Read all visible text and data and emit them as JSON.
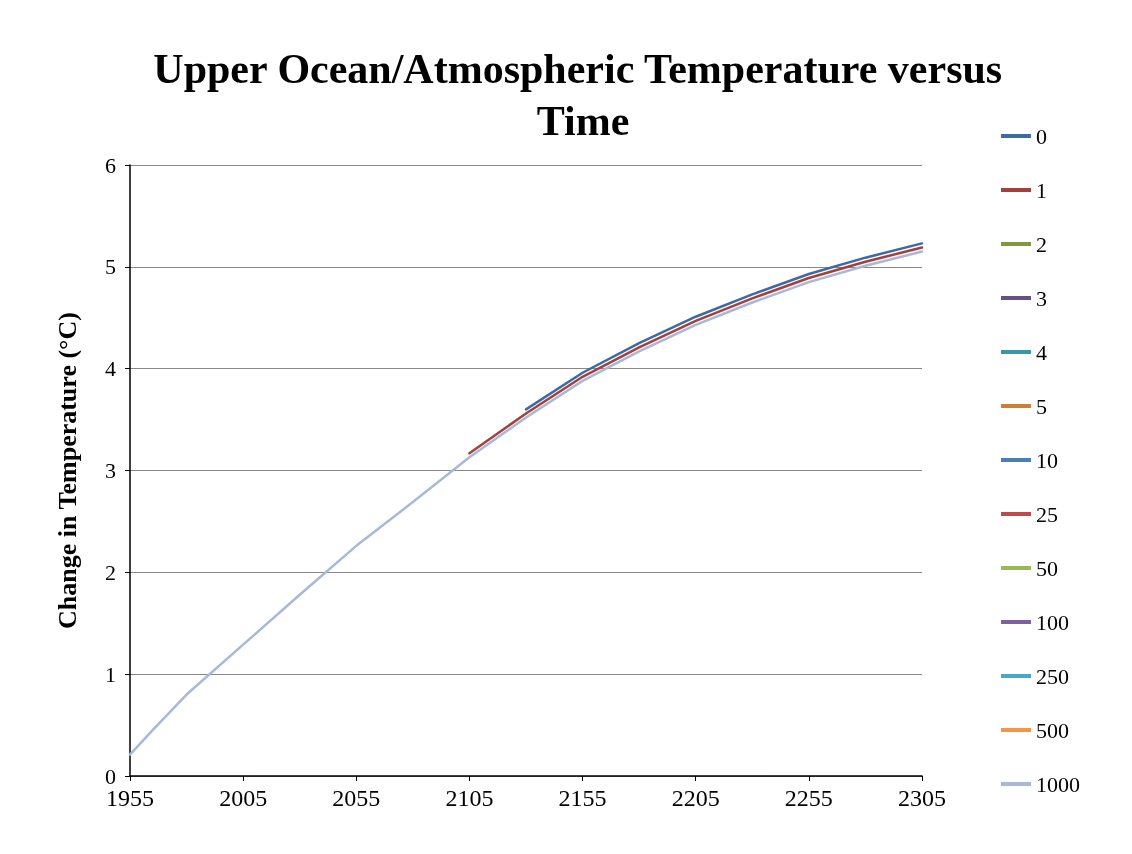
{
  "chart_data": {
    "type": "line",
    "title": "Upper Ocean/Atmospheric Temperature versus Time",
    "ylabel": "Change in Temperature (°C)",
    "x": [
      1955,
      1965,
      1980,
      2005,
      2030,
      2055,
      2080,
      2105,
      2130,
      2155,
      2180,
      2205,
      2230,
      2255,
      2280,
      2305
    ],
    "xlim": [
      1955,
      2305
    ],
    "xticks": [
      1955,
      2005,
      2055,
      2105,
      2155,
      2205,
      2255,
      2305
    ],
    "ylim": [
      0,
      6
    ],
    "yticks": [
      0,
      1,
      2,
      3,
      4,
      5,
      6
    ],
    "grid": "y",
    "legend": "right",
    "marker": "none",
    "line_style": "solid",
    "series": [
      {
        "name": "0",
        "color": "#3d6aa5",
        "values": [
          null,
          null,
          null,
          null,
          null,
          null,
          null,
          null,
          3.6,
          3.96,
          4.25,
          4.51,
          4.73,
          4.93,
          5.09,
          5.23
        ]
      },
      {
        "name": "1",
        "color": "#a53f3c",
        "values": [
          null,
          null,
          null,
          null,
          null,
          null,
          null,
          3.17,
          3.56,
          3.92,
          4.21,
          4.47,
          4.69,
          4.89,
          5.05,
          5.19
        ]
      },
      {
        "name": "2",
        "color": "#7d9a3e",
        "values": [
          null,
          null,
          null,
          null,
          null,
          null,
          null,
          null,
          null,
          null,
          null,
          null,
          null,
          null,
          null,
          null
        ]
      },
      {
        "name": "3",
        "color": "#654f84",
        "values": [
          null,
          null,
          null,
          null,
          null,
          null,
          null,
          null,
          null,
          null,
          null,
          null,
          null,
          null,
          null,
          null
        ]
      },
      {
        "name": "4",
        "color": "#3a95ad",
        "values": [
          null,
          null,
          null,
          null,
          null,
          null,
          null,
          null,
          null,
          null,
          null,
          null,
          null,
          null,
          null,
          null
        ]
      },
      {
        "name": "5",
        "color": "#d07e31",
        "values": [
          null,
          null,
          null,
          null,
          null,
          null,
          null,
          null,
          null,
          null,
          null,
          null,
          null,
          null,
          null,
          null
        ]
      },
      {
        "name": "10",
        "color": "#4a7ebb",
        "values": [
          null,
          null,
          null,
          null,
          null,
          null,
          null,
          null,
          null,
          null,
          null,
          null,
          null,
          null,
          null,
          null
        ]
      },
      {
        "name": "25",
        "color": "#be4b48",
        "values": [
          null,
          null,
          null,
          null,
          null,
          null,
          null,
          null,
          null,
          null,
          null,
          null,
          null,
          null,
          null,
          null
        ]
      },
      {
        "name": "50",
        "color": "#98b954",
        "values": [
          null,
          null,
          null,
          null,
          null,
          null,
          null,
          null,
          null,
          null,
          null,
          null,
          null,
          null,
          null,
          null
        ]
      },
      {
        "name": "100",
        "color": "#7d60a0",
        "values": [
          null,
          null,
          null,
          null,
          null,
          null,
          null,
          null,
          null,
          null,
          null,
          null,
          null,
          null,
          null,
          null
        ]
      },
      {
        "name": "250",
        "color": "#46aac5",
        "values": [
          null,
          null,
          null,
          null,
          null,
          null,
          null,
          null,
          null,
          null,
          null,
          null,
          null,
          null,
          null,
          null
        ]
      },
      {
        "name": "500",
        "color": "#f69546",
        "values": [
          null,
          null,
          null,
          null,
          null,
          null,
          null,
          null,
          null,
          null,
          null,
          null,
          null,
          null,
          null,
          null
        ]
      },
      {
        "name": "1000",
        "color": "#a7b9d9",
        "values": [
          0.21,
          0.45,
          0.8,
          1.29,
          1.78,
          2.26,
          2.69,
          3.13,
          3.52,
          3.88,
          4.17,
          4.43,
          4.65,
          4.85,
          5.01,
          5.15
        ]
      }
    ]
  }
}
